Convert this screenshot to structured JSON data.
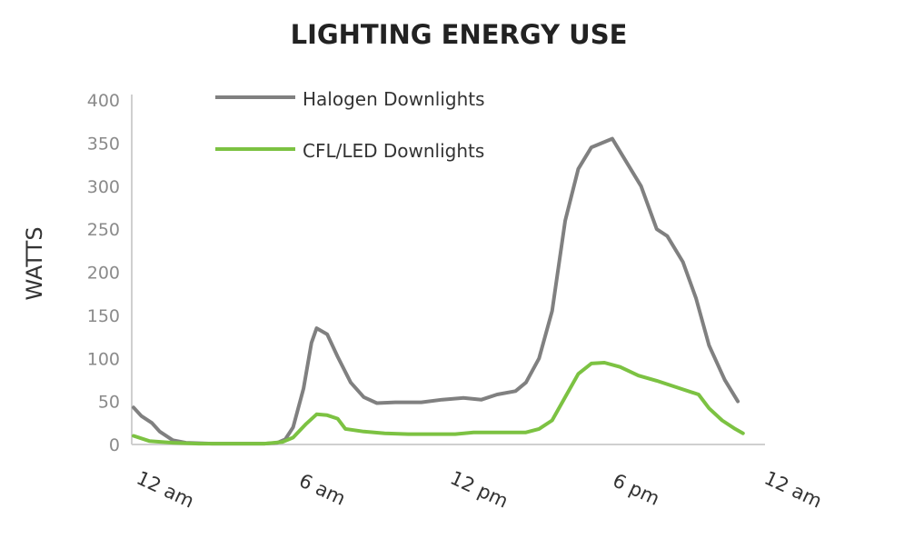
{
  "chart_data": {
    "type": "line",
    "title": "LIGHTING ENERGY USE",
    "xlabel": "",
    "ylabel": "WATTS",
    "ylim": [
      0,
      400
    ],
    "yticks": [
      0,
      50,
      100,
      150,
      200,
      250,
      300,
      350,
      400
    ],
    "xlim": [
      0,
      24
    ],
    "xticks": [
      {
        "value": 0,
        "label": "12 am"
      },
      {
        "value": 6,
        "label": "6 am"
      },
      {
        "value": 12,
        "label": "12 pm"
      },
      {
        "value": 18,
        "label": "6 pm"
      },
      {
        "value": 24,
        "label": "12 am"
      }
    ],
    "grid": false,
    "legend": "top-left",
    "series": [
      {
        "name": "Halogen Downlights",
        "color": "#808080",
        "points": [
          [
            0,
            43
          ],
          [
            0.3,
            33
          ],
          [
            0.7,
            25
          ],
          [
            1.0,
            15
          ],
          [
            1.5,
            5
          ],
          [
            2,
            2
          ],
          [
            3,
            1
          ],
          [
            4,
            1
          ],
          [
            5,
            1
          ],
          [
            5.5,
            2
          ],
          [
            5.8,
            6
          ],
          [
            6.1,
            20
          ],
          [
            6.5,
            65
          ],
          [
            6.8,
            118
          ],
          [
            7.0,
            135
          ],
          [
            7.4,
            128
          ],
          [
            7.8,
            102
          ],
          [
            8.3,
            72
          ],
          [
            8.8,
            55
          ],
          [
            9.3,
            48
          ],
          [
            10,
            49
          ],
          [
            11,
            49
          ],
          [
            11.8,
            52
          ],
          [
            12.6,
            54
          ],
          [
            13.3,
            52
          ],
          [
            13.9,
            58
          ],
          [
            14.6,
            62
          ],
          [
            15.0,
            72
          ],
          [
            15.5,
            100
          ],
          [
            16.0,
            155
          ],
          [
            16.5,
            260
          ],
          [
            17.0,
            320
          ],
          [
            17.5,
            345
          ],
          [
            17.9,
            350
          ],
          [
            18.3,
            355
          ],
          [
            18.8,
            330
          ],
          [
            19.4,
            300
          ],
          [
            20.0,
            250
          ],
          [
            20.4,
            242
          ],
          [
            21.0,
            212
          ],
          [
            21.5,
            170
          ],
          [
            22.0,
            115
          ],
          [
            22.6,
            75
          ],
          [
            23.1,
            50
          ]
        ]
      },
      {
        "name": "CFL/LED Downlights",
        "color": "#7cc242",
        "points": [
          [
            0,
            10
          ],
          [
            0.6,
            4
          ],
          [
            1.5,
            2
          ],
          [
            2.5,
            1
          ],
          [
            4,
            1
          ],
          [
            5,
            1
          ],
          [
            5.7,
            3
          ],
          [
            6.1,
            8
          ],
          [
            6.6,
            24
          ],
          [
            7.0,
            35
          ],
          [
            7.4,
            34
          ],
          [
            7.8,
            30
          ],
          [
            8.1,
            18
          ],
          [
            8.8,
            15
          ],
          [
            9.6,
            13
          ],
          [
            10.5,
            12
          ],
          [
            11.5,
            12
          ],
          [
            12.3,
            12
          ],
          [
            13.0,
            14
          ],
          [
            14.0,
            14
          ],
          [
            15.0,
            14
          ],
          [
            15.5,
            18
          ],
          [
            16.0,
            28
          ],
          [
            16.5,
            55
          ],
          [
            17.0,
            82
          ],
          [
            17.5,
            94
          ],
          [
            18.0,
            95
          ],
          [
            18.6,
            90
          ],
          [
            19.3,
            80
          ],
          [
            20.0,
            74
          ],
          [
            21.0,
            64
          ],
          [
            21.6,
            58
          ],
          [
            22.0,
            42
          ],
          [
            22.5,
            28
          ],
          [
            23.0,
            18
          ],
          [
            23.3,
            13
          ]
        ]
      }
    ]
  }
}
